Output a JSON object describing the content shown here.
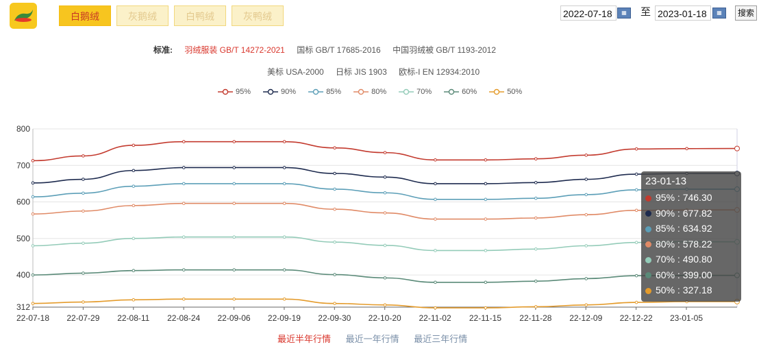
{
  "tabs": [
    {
      "label": "白鹅绒",
      "active": true
    },
    {
      "label": "灰鹅绒",
      "active": false
    },
    {
      "label": "白鸭绒",
      "active": false
    },
    {
      "label": "灰鸭绒",
      "active": false
    }
  ],
  "date_range": {
    "start": "2022-07-18",
    "end": "2023-01-18",
    "separator": "至",
    "search_label": "搜索",
    "calendar_icon": "calendar-icon"
  },
  "standards": {
    "label": "标准:",
    "line1": [
      "羽绒服装 GB/T 14272-2021",
      "国标 GB/T 17685-2016",
      "中国羽绒被 GB/T 1193-2012"
    ],
    "line2": [
      "美标 USA-2000",
      "日标 JIS 1903",
      "欧标-I EN 12934:2010"
    ]
  },
  "range_links": [
    {
      "label": "最近半年行情",
      "active": true
    },
    {
      "label": "最近一年行情",
      "active": false
    },
    {
      "label": "最近三年行情",
      "active": false
    }
  ],
  "tooltip": {
    "date": "23-01-13",
    "rows": [
      {
        "label": "95% : 746.30",
        "color": "#c33a2e"
      },
      {
        "label": "90% : 677.82",
        "color": "#1d2a4e"
      },
      {
        "label": "85% : 634.92",
        "color": "#5b9eb7"
      },
      {
        "label": "80% : 578.22",
        "color": "#e08a66"
      },
      {
        "label": "70% : 490.80",
        "color": "#93cbb8"
      },
      {
        "label": "60% : 399.00",
        "color": "#5a8a78"
      },
      {
        "label": "50% : 327.18",
        "color": "#e49b2b"
      }
    ]
  },
  "chart_data": {
    "type": "line",
    "title": "",
    "xlabel": "",
    "ylabel": "",
    "ylim": [
      312,
      800
    ],
    "yticks": [
      312,
      400,
      500,
      600,
      700,
      800
    ],
    "x_tick_labels": [
      "22-07-18",
      "22-07-29",
      "22-08-11",
      "22-08-24",
      "22-09-06",
      "22-09-19",
      "22-09-30",
      "22-10-20",
      "22-11-02",
      "22-11-15",
      "22-11-28",
      "22-12-09",
      "22-12-22",
      "23-01-05"
    ],
    "grid": true,
    "legend_position": "top-center",
    "x": [
      "22-07-18",
      "22-07-29",
      "22-08-11",
      "22-08-24",
      "22-09-06",
      "22-09-19",
      "22-09-30",
      "22-10-20",
      "22-11-02",
      "22-11-15",
      "22-11-28",
      "22-12-09",
      "22-12-22",
      "23-01-05",
      "23-01-13"
    ],
    "series": [
      {
        "name": "95%",
        "color": "#c33a2e",
        "values": [
          713,
          726,
          755,
          765,
          765,
          765,
          748,
          735,
          715,
          715,
          718,
          728,
          745,
          746,
          746.3
        ]
      },
      {
        "name": "90%",
        "color": "#1d2a4e",
        "values": [
          652,
          662,
          686,
          694,
          694,
          694,
          678,
          668,
          650,
          650,
          653,
          662,
          676,
          678,
          677.82
        ]
      },
      {
        "name": "85%",
        "color": "#5b9eb7",
        "values": [
          614,
          624,
          643,
          650,
          650,
          650,
          635,
          625,
          607,
          607,
          610,
          620,
          633,
          635,
          634.92
        ]
      },
      {
        "name": "80%",
        "color": "#e08a66",
        "values": [
          567,
          575,
          590,
          596,
          596,
          596,
          580,
          570,
          553,
          553,
          556,
          565,
          577,
          578,
          578.22
        ]
      },
      {
        "name": "70%",
        "color": "#93cbb8",
        "values": [
          480,
          487,
          500,
          504,
          504,
          504,
          490,
          481,
          467,
          467,
          471,
          480,
          489,
          491,
          490.8
        ]
      },
      {
        "name": "60%",
        "color": "#5a8a78",
        "values": [
          400,
          405,
          412,
          414,
          414,
          414,
          401,
          392,
          380,
          380,
          383,
          390,
          398,
          399,
          399.0
        ]
      },
      {
        "name": "50%",
        "color": "#e49b2b",
        "values": [
          322,
          326,
          332,
          334,
          334,
          334,
          322,
          318,
          310,
          310,
          313,
          318,
          325,
          327,
          327.18
        ]
      }
    ]
  }
}
